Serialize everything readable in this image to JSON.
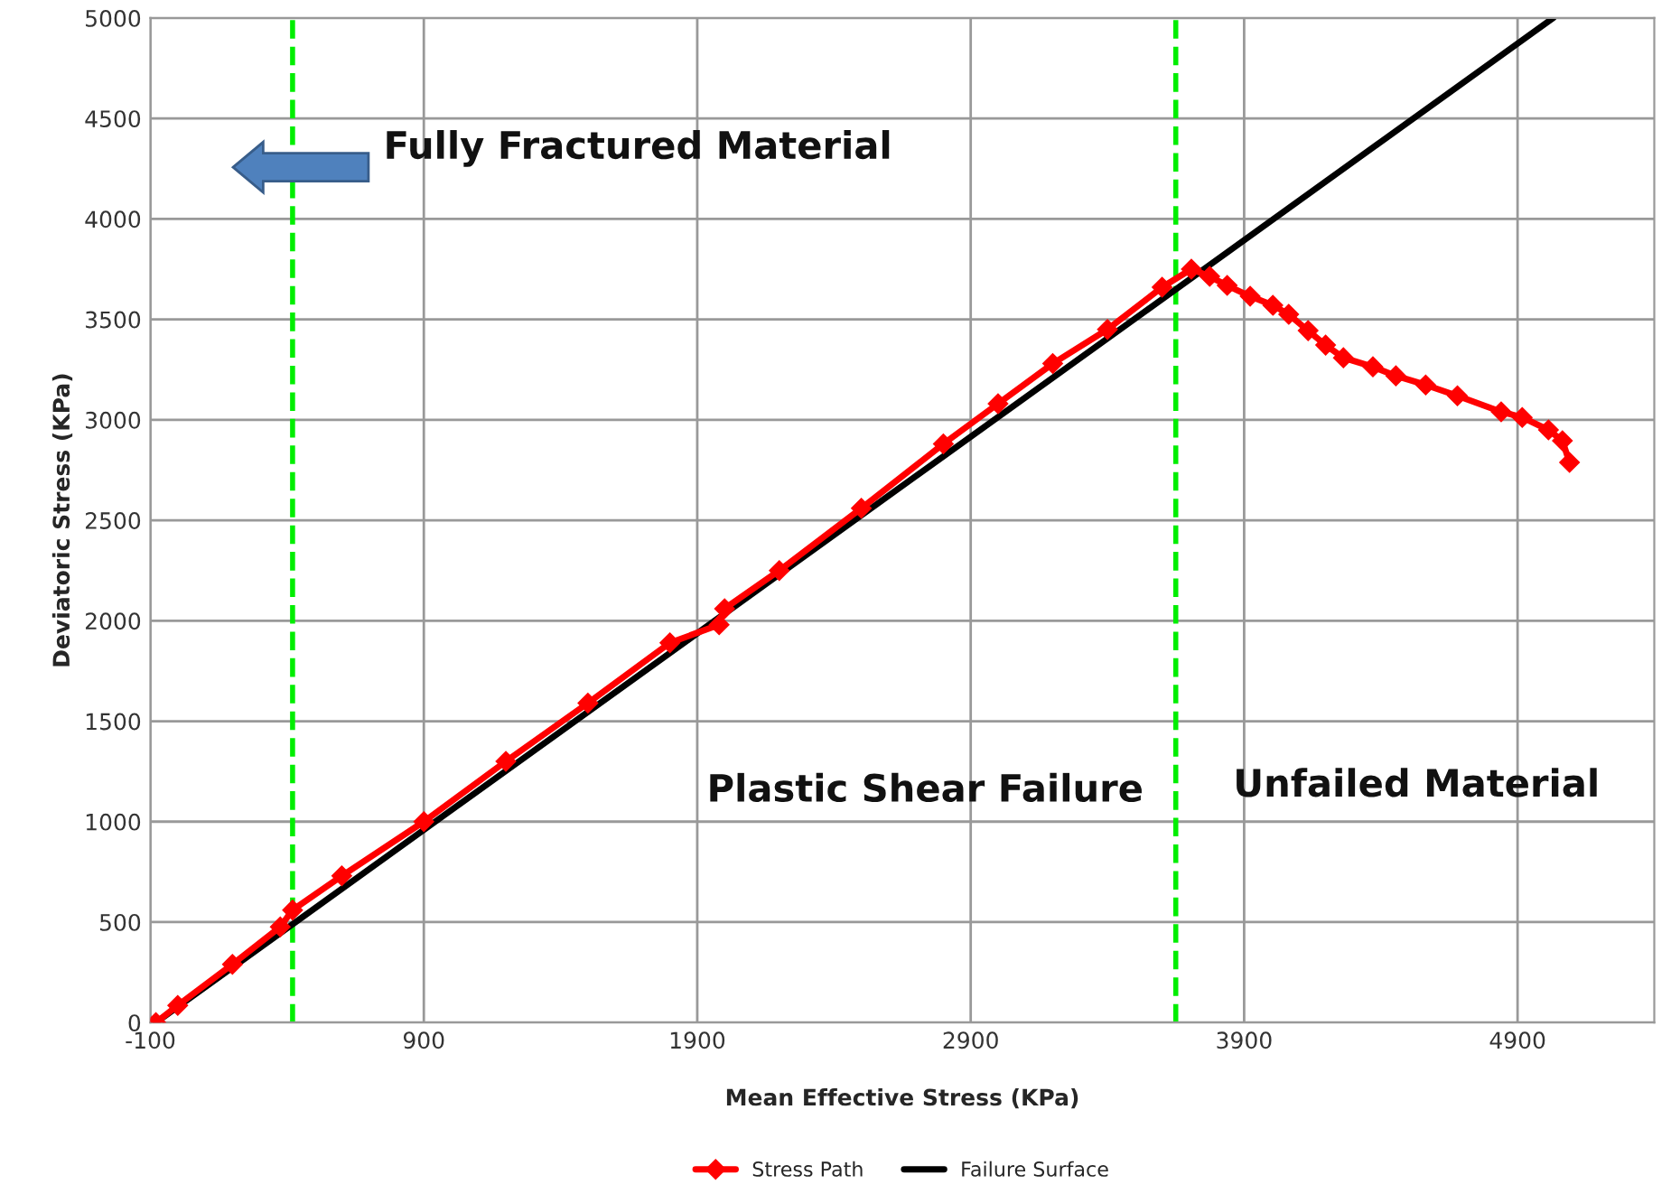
{
  "chart_data": {
    "type": "line",
    "xlabel": "Mean Effective Stress (KPa)",
    "ylabel": "Deviatoric Stress (KPa)",
    "xlim": [
      -100,
      5400
    ],
    "xticks": [
      -100,
      900,
      1900,
      2900,
      3900,
      4900
    ],
    "ylim": [
      0,
      5000
    ],
    "yticks": [
      0,
      500,
      1000,
      1500,
      2000,
      2500,
      3000,
      3500,
      4000,
      4500,
      5000
    ],
    "grid": true,
    "legend": "bottom",
    "series": [
      {
        "name": "Stress Path",
        "color": "#ff0000",
        "marker": "diamond",
        "x": [
          -80,
          0,
          200,
          375,
          420,
          600,
          900,
          1200,
          1500,
          1800,
          1980,
          2000,
          2200,
          2500,
          2800,
          3000,
          3200,
          3400,
          3600,
          3707,
          3774,
          3838,
          3922,
          4005,
          4063,
          4134,
          4198,
          4263,
          4371,
          4455,
          4564,
          4680,
          4840,
          4917,
          5013,
          5064,
          5090
        ],
        "values": [
          0,
          85,
          290,
          476,
          560,
          730,
          1000,
          1300,
          1590,
          1890,
          1980,
          2060,
          2250,
          2560,
          2880,
          3080,
          3280,
          3450,
          3660,
          3750,
          3714,
          3669,
          3615,
          3570,
          3525,
          3444,
          3372,
          3309,
          3264,
          3219,
          3174,
          3120,
          3040,
          3012,
          2950,
          2896,
          2788
        ]
      },
      {
        "name": "Failure Surface",
        "color": "#000000",
        "marker": "none",
        "x": [
          -80,
          5030
        ],
        "values": [
          0,
          5000
        ]
      }
    ],
    "ref_lines": [
      {
        "axis": "x",
        "value": 420,
        "color": "#00ee00",
        "line_style": "dashed"
      },
      {
        "axis": "x",
        "value": 3650,
        "color": "#00ee00",
        "line_style": "dashed"
      }
    ],
    "annotations": [
      "Fully Fractured Material",
      "Plastic Shear Failure",
      "Unfailed Material"
    ]
  }
}
